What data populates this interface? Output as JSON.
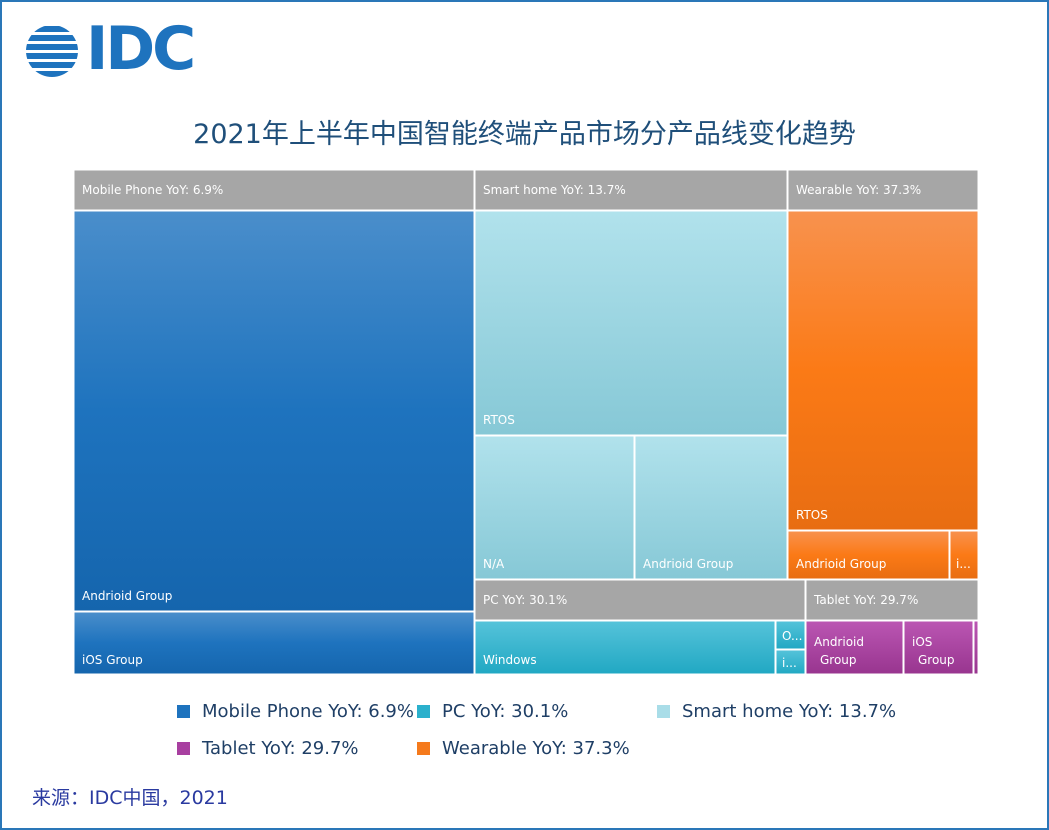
{
  "logo": {
    "text": "IDC"
  },
  "chart_data": {
    "type": "treemap",
    "title": "2021年上半年中国智能终端产品市场分产品线变化趋势",
    "colors": {
      "Mobile Phone": "#1e73be",
      "PC": "#2bb0cc",
      "Smart home": "#a9dde8",
      "Tablet": "#a83fa0",
      "Wearable": "#f57a1c",
      "header": "#a6a6a6"
    },
    "groups": [
      {
        "name": "Mobile Phone",
        "header": "Mobile Phone YoY: 6.9%",
        "children": [
          {
            "label": "Andrioid Group"
          },
          {
            "label": "iOS Group"
          }
        ]
      },
      {
        "name": "Smart home",
        "header": "Smart home YoY: 13.7%",
        "children": [
          {
            "label": "RTOS"
          },
          {
            "label": "N/A"
          },
          {
            "label": "Andrioid Group"
          }
        ]
      },
      {
        "name": "Wearable",
        "header": "Wearable YoY: 37.3%",
        "children": [
          {
            "label": "RTOS"
          },
          {
            "label": "Andrioid Group"
          },
          {
            "label": "i..."
          }
        ]
      },
      {
        "name": "PC",
        "header": "PC YoY: 30.1%",
        "children": [
          {
            "label": "Windows"
          },
          {
            "label": "O..."
          },
          {
            "label": "i..."
          }
        ]
      },
      {
        "name": "Tablet",
        "header": "Tablet YoY: 29.7%",
        "children": [
          {
            "label": "Andrioid Group"
          },
          {
            "label": "iOS Group"
          },
          {
            "label": ""
          }
        ]
      }
    ],
    "legend": [
      {
        "label": "Mobile Phone YoY: 6.9%",
        "color": "#1e73be"
      },
      {
        "label": "PC YoY: 30.1%",
        "color": "#2bb0cc"
      },
      {
        "label": "Smart home YoY: 13.7%",
        "color": "#a9dde8"
      },
      {
        "label": "Tablet YoY: 29.7%",
        "color": "#a83fa0"
      },
      {
        "label": "Wearable YoY: 37.3%",
        "color": "#f57a1c"
      }
    ]
  },
  "source": "来源：IDC中国，2021"
}
